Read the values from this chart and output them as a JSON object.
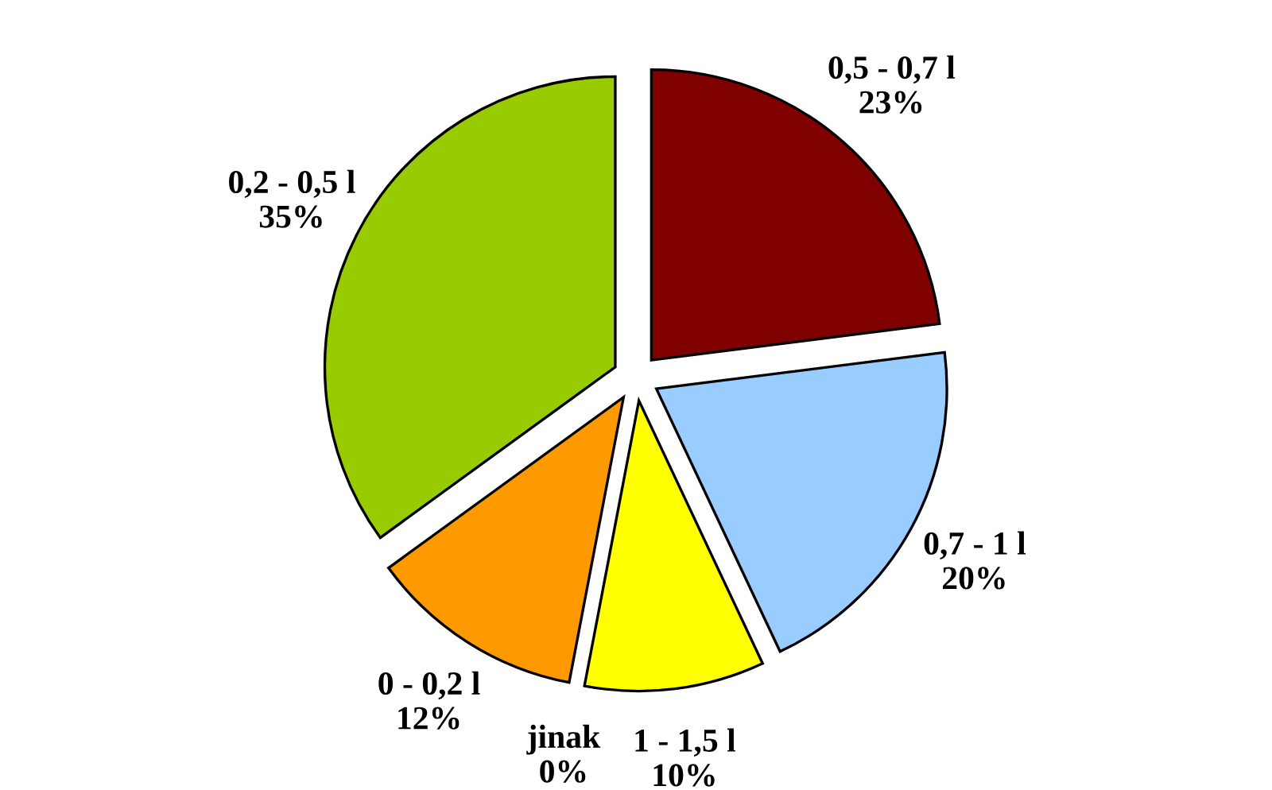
{
  "chart_data": {
    "type": "pie",
    "categories": [
      "0,5 - 0,7 l",
      "0,7 - 1 l",
      "1 - 1,5 l",
      "jinak",
      "0 - 0,2 l",
      "0,2 - 0,5 l"
    ],
    "values": [
      23,
      20,
      10,
      0,
      12,
      35
    ],
    "value_labels": [
      "23%",
      "20%",
      "10%",
      "0%",
      "12%",
      "35%"
    ],
    "colors": [
      "#800000",
      "#99ccff",
      "#ffff00",
      "#000080",
      "#ff9900",
      "#99cc00"
    ],
    "legend": false
  }
}
